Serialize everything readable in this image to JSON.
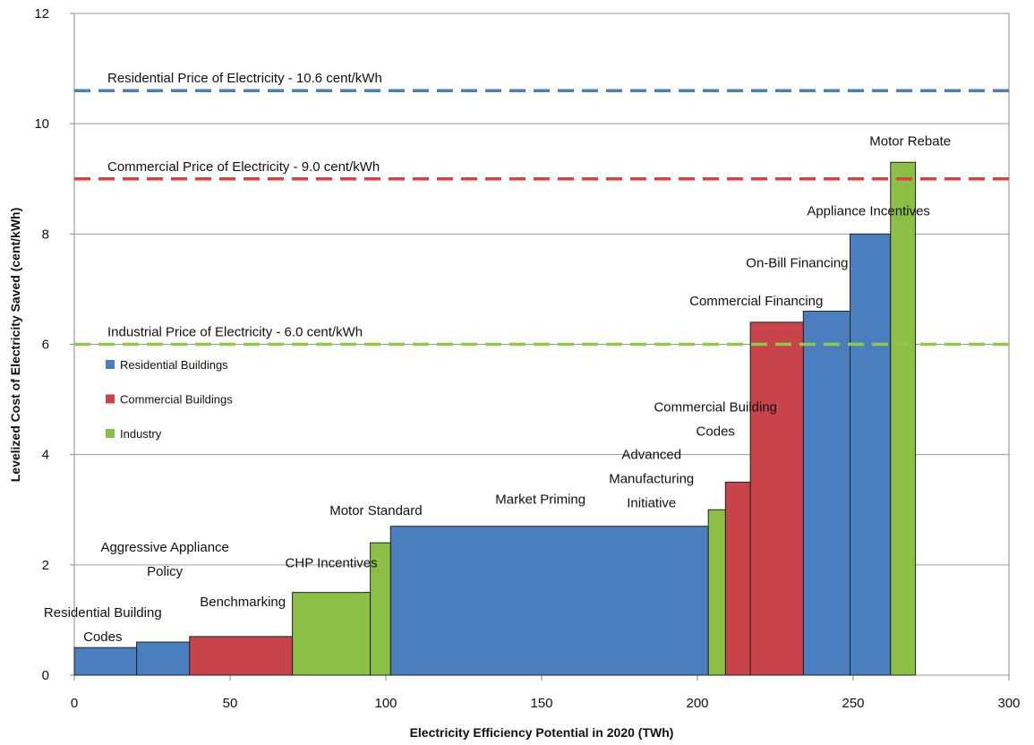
{
  "chart_data": {
    "type": "supply-curve",
    "xlabel": "Electricity Efficiency Potential in 2020 (TWh)",
    "ylabel": "Levelized Cost of Electricity Saved (cent/kWh)",
    "xlim": [
      0,
      300
    ],
    "xticks": [
      0,
      50,
      100,
      150,
      200,
      250,
      300
    ],
    "ylim": [
      0,
      12
    ],
    "yticks": [
      0,
      2,
      4,
      6,
      8,
      10,
      12
    ],
    "grid": true,
    "series": [
      {
        "name": "Residential Buildings",
        "color": "#4a7ebf",
        "labels": [
          [
            "Residential Building",
            "Codes"
          ],
          [
            "Aggressive Appliance",
            "Policy"
          ],
          [
            "Market Priming"
          ],
          [
            "On-Bill Financing"
          ],
          [
            "Appliance Incentives"
          ]
        ],
        "x0": [
          0,
          20,
          101.5,
          234,
          249
        ],
        "x1": [
          20,
          37,
          203.5,
          249,
          262
        ],
        "values": [
          0.5,
          0.6,
          2.7,
          6.6,
          8.0
        ]
      },
      {
        "name": "Commercial Buildings",
        "color": "#c9434a",
        "labels": [
          [
            "Benchmarking"
          ],
          [
            "Commercial Building",
            "Codes"
          ],
          [
            "Commercial Financing"
          ]
        ],
        "x0": [
          37,
          209,
          217
        ],
        "x1": [
          70,
          217,
          234
        ],
        "values": [
          0.7,
          3.5,
          6.4
        ]
      },
      {
        "name": "Industry",
        "color": "#8cbf45",
        "labels": [
          [
            "CHP Incentives"
          ],
          [
            "Motor Standard"
          ],
          [
            "Advanced",
            "Manufacturing",
            "Initiative"
          ],
          [
            "Motor Rebate"
          ]
        ],
        "x0": [
          70,
          95,
          203.5,
          262
        ],
        "x1": [
          95,
          101.5,
          209,
          270
        ],
        "values": [
          1.5,
          2.4,
          3.0,
          9.3
        ]
      }
    ],
    "reference_lines": [
      {
        "label": "Residential Price of Electricity - 10.6 cent/kWh",
        "value": 10.6,
        "color": "#4a7ebf"
      },
      {
        "label": "Commercial Price of Electricity - 9.0 cent/kWh",
        "value": 9.0,
        "color": "#d94040"
      },
      {
        "label": "Industrial Price of Electricity - 6.0 cent/kWh",
        "value": 6.0,
        "color": "#92c847"
      }
    ]
  }
}
